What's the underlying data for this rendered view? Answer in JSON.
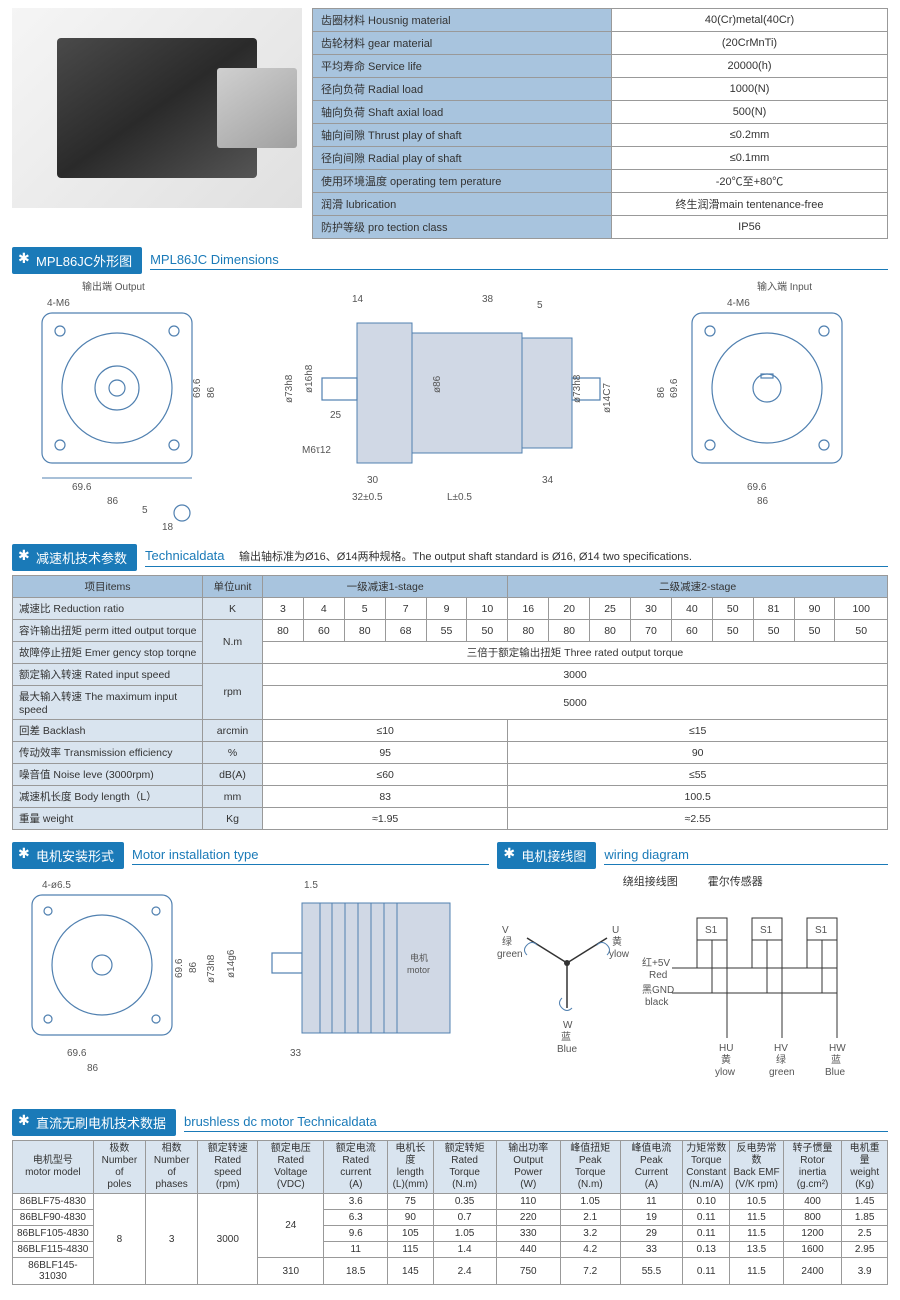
{
  "spec_rows": [
    [
      "齿圈材料 Housnig material",
      "40(Cr)metal(40Cr)"
    ],
    [
      "齿轮材料 gear material",
      "(20CrMnTi)"
    ],
    [
      "平均寿命 Service life",
      "20000(h)"
    ],
    [
      "径向负荷 Radial load",
      "1000(N)"
    ],
    [
      "轴向负荷 Shaft axial load",
      "500(N)"
    ],
    [
      "轴向间隙 Thrust play of shaft",
      "≤0.2mm"
    ],
    [
      "径向间隙 Radial play of shaft",
      "≤0.1mm"
    ],
    [
      "使用环境温度 operating tem perature",
      "-20℃至+80℃"
    ],
    [
      "润滑 lubrication",
      "终生润滑main tentenance-free"
    ],
    [
      "防护等级 pro tection class",
      "IP56"
    ]
  ],
  "sec1": {
    "cn": "MPL86JC外形图",
    "en": "MPL86JC Dimensions"
  },
  "sec2": {
    "cn": "减速机技术参数",
    "en": "Technicaldata",
    "note": "输出轴标准为Ø16、Ø14两种规格。The output shaft standard is Ø16, Ø14 two specifications."
  },
  "sec3": {
    "cn": "电机安装形式",
    "en": "Motor installation type"
  },
  "sec4": {
    "cn": "电机接线图",
    "en": "wiring diagram"
  },
  "sec5": {
    "cn": "直流无刷电机技术数据",
    "en": "brushless dc motor Technicaldata"
  },
  "dim": {
    "output": "输出端 Output",
    "input": "输入端 Input",
    "m6": "4-M6",
    "m6t12": "M6τ12",
    "d696": "69.6",
    "d86": "86",
    "d18": "18",
    "d5": "5",
    "d14": "14",
    "d38": "38",
    "d25": "25",
    "d30": "30",
    "d32": "32±0.5",
    "dL": "L±0.5",
    "d34": "34",
    "phi73": "ø73h8",
    "phi16": "ø16h8",
    "phi86": "ø86",
    "phi14c7": "ø14C7"
  },
  "tech": {
    "hdr_items": "项目items",
    "hdr_unit": "单位unit",
    "hdr_s1": "一级减速1-stage",
    "hdr_s2": "二级减速2-stage",
    "rows": [
      {
        "label": "减速比 Reduction ratio",
        "unit": "K",
        "s1": [
          "3",
          "4",
          "5",
          "7",
          "9",
          "10"
        ],
        "s2": [
          "16",
          "20",
          "25",
          "30",
          "40",
          "50",
          "81",
          "90",
          "100"
        ]
      },
      {
        "label": "容许输出扭矩 perm itted output torque",
        "unit": "N.m",
        "s1": [
          "80",
          "60",
          "80",
          "68",
          "55",
          "50"
        ],
        "s2": [
          "80",
          "80",
          "80",
          "70",
          "60",
          "50",
          "50",
          "50",
          "50"
        ]
      },
      {
        "label": "故障停止扭矩 Emer gency stop torqne",
        "unit": "",
        "span": "三倍于额定输出扭矩 Three rated output torque"
      },
      {
        "label": "额定输入转速 Rated input speed",
        "unit": "rpm",
        "span": "3000"
      },
      {
        "label": "最大输入转速 The maximum input speed",
        "unit": "",
        "span": "5000"
      },
      {
        "label": "回差 Backlash",
        "unit": "arcmin",
        "v1": "≤10",
        "v2": "≤15"
      },
      {
        "label": "传动效率 Transmission efficiency",
        "unit": "%",
        "v1": "95",
        "v2": "90"
      },
      {
        "label": "噪音值 Noise leve (3000rpm)",
        "unit": "dB(A)",
        "v1": "≤60",
        "v2": "≤55"
      },
      {
        "label": "减速机长度 Body length（L）",
        "unit": "mm",
        "v1": "83",
        "v2": "100.5"
      },
      {
        "label": "重量 weight",
        "unit": "Kg",
        "v1": "≈1.95",
        "v2": "≈2.55"
      }
    ]
  },
  "install": {
    "h465": "4-ø6.5",
    "d696": "69.6",
    "d86": "86",
    "phi73": "ø73h8",
    "phi14": "ø14g6",
    "d33": "33",
    "d15": "1.5",
    "motor": "电机\nmotor"
  },
  "wiring": {
    "sub1": "绕组接线图",
    "sub2": "霍尔传感器",
    "U": "U\n黄\nylow",
    "V": "V\n绿\ngreen",
    "W": "W\n蓝\nBlue",
    "S1": "S1",
    "red": "红+5V\nRed",
    "black": "黑GND\nblack",
    "HU": "HU\n黄\nylow",
    "HV": "HV\n绿\ngreen",
    "HW": "HW\n蓝\nBlue"
  },
  "bldc": {
    "cols": [
      "电机型号\nmotor model",
      "极数\nNumber of\npoles",
      "相数\nNumber of\nphases",
      "额定转速\nRated speed\n(rpm)",
      "额定电压\nRated Voltage\n(VDC)",
      "额定电流\nRated current\n(A)",
      "电机长度\nlength\n(L)(mm)",
      "额定转矩\nRated Torque\n(N.m)",
      "输出功率\nOutput Power\n(W)",
      "峰值扭矩\nPeak Torque\n(N.m)",
      "峰值电流\nPeak Current\n(A)",
      "力矩常数\nTorque\nConstant\n(N.m/A)",
      "反电势常数\nBack EMF\n(V/K rpm)",
      "转子惯量\nRotor inertia\n(g.cm²)",
      "电机重量\nweight\n(Kg)"
    ],
    "rows": [
      [
        "86BLF75-4830",
        "8",
        "3",
        "3000",
        "24",
        "3.6",
        "75",
        "0.35",
        "110",
        "1.05",
        "11",
        "0.10",
        "10.5",
        "400",
        "1.45"
      ],
      [
        "86BLF90-4830",
        "",
        "",
        "",
        "",
        "6.3",
        "90",
        "0.7",
        "220",
        "2.1",
        "19",
        "0.11",
        "11.5",
        "800",
        "1.85"
      ],
      [
        "86BLF105-4830",
        "",
        "",
        "",
        "",
        "9.6",
        "105",
        "1.05",
        "330",
        "3.2",
        "29",
        "0.11",
        "11.5",
        "1200",
        "2.5"
      ],
      [
        "86BLF115-4830",
        "",
        "",
        "",
        "",
        "11",
        "115",
        "1.4",
        "440",
        "4.2",
        "33",
        "0.13",
        "13.5",
        "1600",
        "2.95"
      ],
      [
        "86BLF145-31030",
        "",
        "",
        "",
        "310",
        "18.5",
        "145",
        "2.4",
        "750",
        "7.2",
        "55.5",
        "0.11",
        "11.5",
        "2400",
        "3.9"
      ]
    ]
  }
}
